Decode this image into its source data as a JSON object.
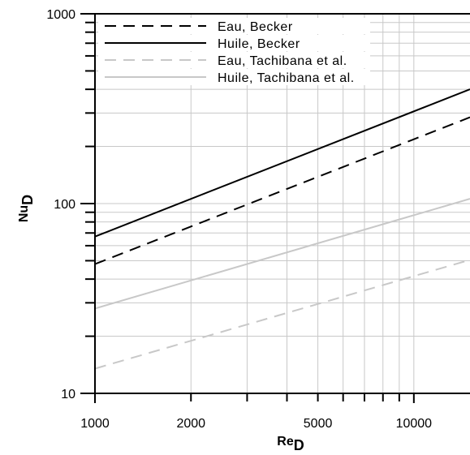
{
  "chart_data": {
    "type": "line",
    "xscale": "log",
    "yscale": "log",
    "xlim": [
      1000,
      15000
    ],
    "ylim": [
      10,
      1000
    ],
    "grid": true,
    "legend_position": "top-left",
    "xlabel": {
      "main": "Re",
      "sub": "D"
    },
    "ylabel": {
      "main": "Nu",
      "sub": "D"
    },
    "x_tick_labels": [
      {
        "value": 1000,
        "label": "1000"
      },
      {
        "value": 2000,
        "label": "2000"
      },
      {
        "value": 5000,
        "label": "5000"
      },
      {
        "value": 10000,
        "label": "10000"
      }
    ],
    "y_tick_labels": [
      {
        "value": 10,
        "label": "10"
      },
      {
        "value": 100,
        "label": "100"
      },
      {
        "value": 1000,
        "label": "1000"
      }
    ],
    "series": [
      {
        "name": "Eau, Becker",
        "color": "#000000",
        "dash": "dashed",
        "x": [
          1000,
          15000
        ],
        "y": [
          48,
          285
        ]
      },
      {
        "name": "Huile, Becker",
        "color": "#000000",
        "dash": "solid",
        "x": [
          1000,
          15000
        ],
        "y": [
          67,
          400
        ]
      },
      {
        "name": "Eau, Tachibana et al.",
        "color": "#c8c8c8",
        "dash": "dashed",
        "x": [
          1000,
          15000
        ],
        "y": [
          13.5,
          50.5
        ]
      },
      {
        "name": "Huile, Tachibana et al.",
        "color": "#c8c8c8",
        "dash": "solid",
        "x": [
          1000,
          15000
        ],
        "y": [
          28,
          106
        ]
      }
    ]
  }
}
